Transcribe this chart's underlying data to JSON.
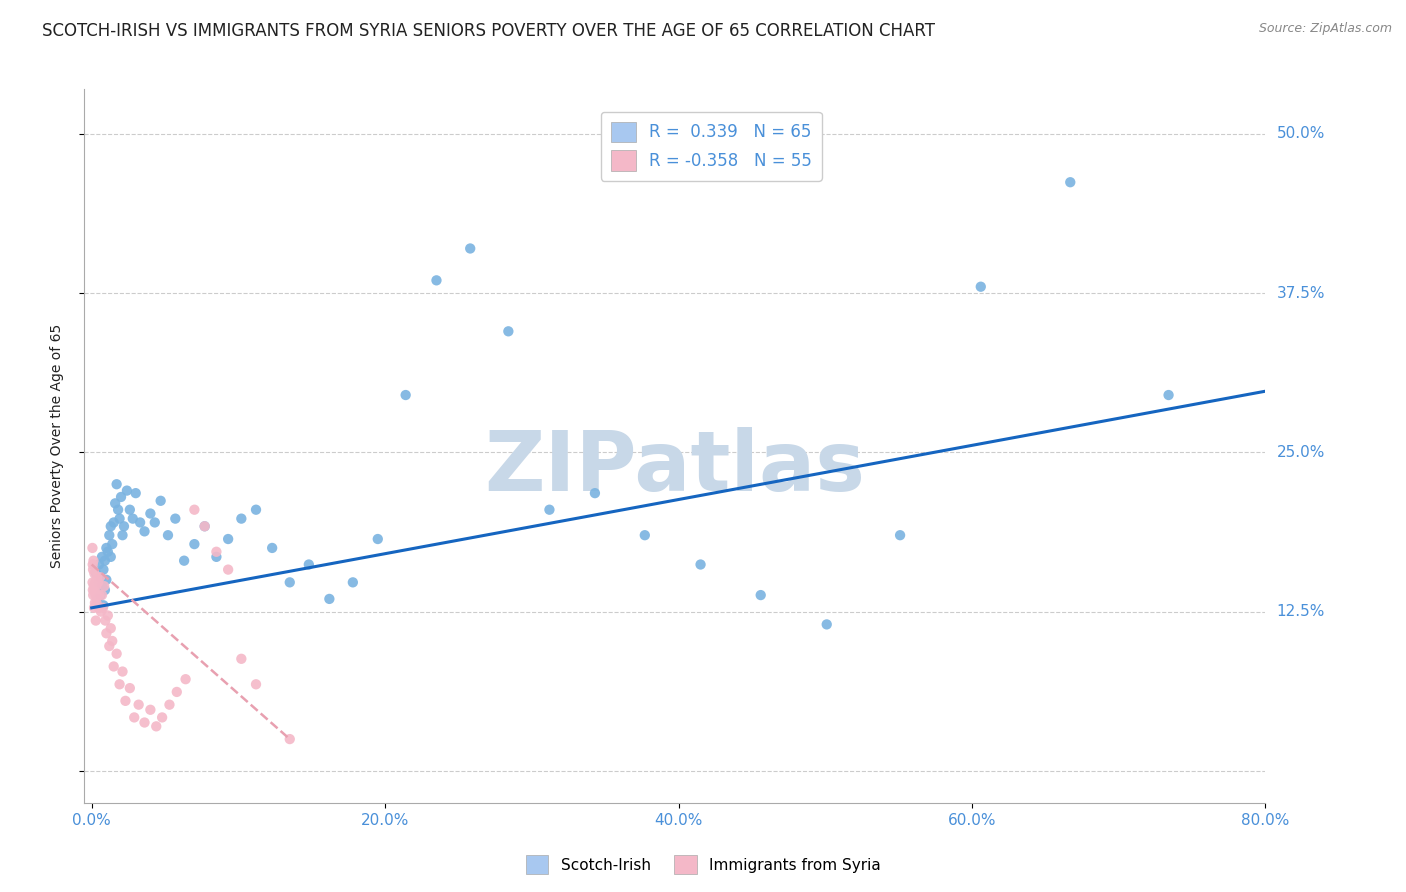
{
  "title": "SCOTCH-IRISH VS IMMIGRANTS FROM SYRIA SENIORS POVERTY OVER THE AGE OF 65 CORRELATION CHART",
  "source": "Source: ZipAtlas.com",
  "ylabel": "Seniors Poverty Over the Age of 65",
  "background_color": "#ffffff",
  "watermark": "ZIPatlas",
  "legend_entries": [
    {
      "label": "R =  0.339   N = 65",
      "color": "#a8c8f0"
    },
    {
      "label": "R = -0.358   N = 55",
      "color": "#f4b8c8"
    }
  ],
  "scatter_blue": {
    "color": "#7ab3e0",
    "x": [
      0.003,
      0.004,
      0.005,
      0.005,
      0.006,
      0.006,
      0.007,
      0.007,
      0.008,
      0.008,
      0.009,
      0.009,
      0.01,
      0.01,
      0.011,
      0.012,
      0.013,
      0.013,
      0.014,
      0.015,
      0.016,
      0.017,
      0.018,
      0.019,
      0.02,
      0.021,
      0.022,
      0.024,
      0.026,
      0.028,
      0.03,
      0.033,
      0.036,
      0.04,
      0.043,
      0.047,
      0.052,
      0.057,
      0.063,
      0.07,
      0.077,
      0.085,
      0.093,
      0.102,
      0.112,
      0.123,
      0.135,
      0.148,
      0.162,
      0.178,
      0.195,
      0.214,
      0.235,
      0.258,
      0.284,
      0.312,
      0.343,
      0.377,
      0.415,
      0.456,
      0.501,
      0.551,
      0.606,
      0.667,
      0.734
    ],
    "y": [
      0.155,
      0.135,
      0.148,
      0.162,
      0.138,
      0.152,
      0.145,
      0.168,
      0.13,
      0.158,
      0.142,
      0.165,
      0.15,
      0.175,
      0.172,
      0.185,
      0.192,
      0.168,
      0.178,
      0.195,
      0.21,
      0.225,
      0.205,
      0.198,
      0.215,
      0.185,
      0.192,
      0.22,
      0.205,
      0.198,
      0.218,
      0.195,
      0.188,
      0.202,
      0.195,
      0.212,
      0.185,
      0.198,
      0.165,
      0.178,
      0.192,
      0.168,
      0.182,
      0.198,
      0.205,
      0.175,
      0.148,
      0.162,
      0.135,
      0.148,
      0.182,
      0.295,
      0.385,
      0.41,
      0.345,
      0.205,
      0.218,
      0.185,
      0.162,
      0.138,
      0.115,
      0.185,
      0.38,
      0.462,
      0.295
    ]
  },
  "scatter_pink": {
    "color": "#f4b8c8",
    "x": [
      0.0005,
      0.0006,
      0.0007,
      0.0008,
      0.0009,
      0.001,
      0.0012,
      0.0014,
      0.0016,
      0.0018,
      0.002,
      0.0022,
      0.0024,
      0.0026,
      0.0028,
      0.003,
      0.0033,
      0.0036,
      0.0039,
      0.0043,
      0.0047,
      0.0052,
      0.0057,
      0.0063,
      0.007,
      0.0077,
      0.0085,
      0.0093,
      0.01,
      0.011,
      0.012,
      0.013,
      0.014,
      0.015,
      0.017,
      0.019,
      0.021,
      0.023,
      0.026,
      0.029,
      0.032,
      0.036,
      0.04,
      0.044,
      0.048,
      0.053,
      0.058,
      0.064,
      0.07,
      0.077,
      0.085,
      0.093,
      0.102,
      0.112,
      0.135
    ],
    "y": [
      0.175,
      0.148,
      0.162,
      0.142,
      0.158,
      0.138,
      0.165,
      0.145,
      0.128,
      0.155,
      0.142,
      0.132,
      0.148,
      0.138,
      0.118,
      0.145,
      0.132,
      0.152,
      0.138,
      0.148,
      0.128,
      0.138,
      0.152,
      0.125,
      0.138,
      0.128,
      0.145,
      0.118,
      0.108,
      0.122,
      0.098,
      0.112,
      0.102,
      0.082,
      0.092,
      0.068,
      0.078,
      0.055,
      0.065,
      0.042,
      0.052,
      0.038,
      0.048,
      0.035,
      0.042,
      0.052,
      0.062,
      0.072,
      0.205,
      0.192,
      0.172,
      0.158,
      0.088,
      0.068,
      0.025
    ]
  },
  "trend_blue": {
    "color": "#1565c0",
    "x_start": 0.0,
    "x_end": 0.8,
    "y_start": 0.128,
    "y_end": 0.298
  },
  "trend_pink": {
    "color": "#e8a0b0",
    "x_start": 0.0,
    "x_end": 0.135,
    "y_start": 0.162,
    "y_end": 0.025,
    "linestyle": "--"
  },
  "xmin": -0.005,
  "xmax": 0.8,
  "ymin": -0.025,
  "ymax": 0.535,
  "yticks": [
    0.0,
    0.125,
    0.25,
    0.375,
    0.5
  ],
  "ytick_labels": [
    "",
    "12.5%",
    "25.0%",
    "37.5%",
    "50.0%"
  ],
  "xticks": [
    0.0,
    0.2,
    0.4,
    0.6,
    0.8
  ],
  "xtick_labels": [
    "0.0%",
    "20.0%",
    "40.0%",
    "60.0%",
    "80.0%"
  ],
  "grid_color": "#cccccc",
  "title_color": "#222222",
  "label_color": "#4a90d9",
  "title_fontsize": 12,
  "axis_label_fontsize": 10,
  "tick_fontsize": 11,
  "source_fontsize": 9,
  "legend_fontsize": 12,
  "watermark_color": "#c8d8e8",
  "watermark_fontsize": 60,
  "bottom_legend": [
    {
      "label": "Scotch-Irish",
      "color": "#a8c8f0"
    },
    {
      "label": "Immigrants from Syria",
      "color": "#f4b8c8"
    }
  ]
}
